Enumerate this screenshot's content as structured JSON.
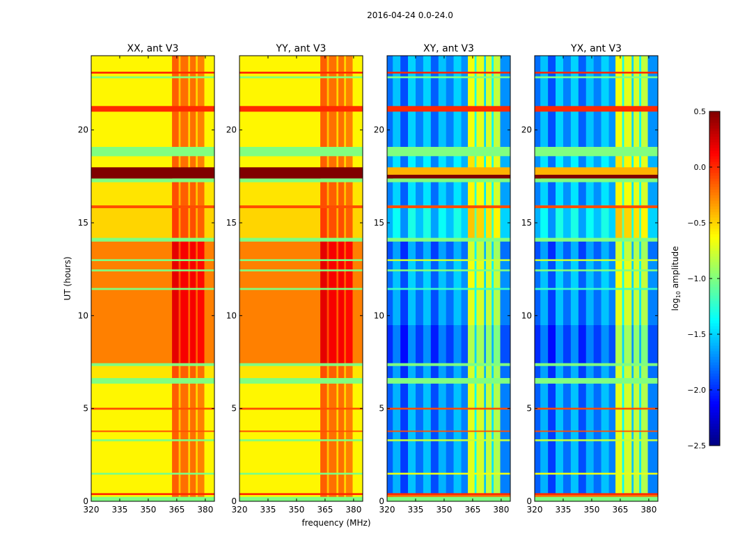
{
  "chart_data": {
    "type": "heatmap",
    "title": "2016-04-24 0.0-24.0",
    "xlabel": "frequency (MHz)",
    "ylabel": "UT (hours)",
    "xlim": [
      320,
      384.8
    ],
    "ylim": [
      0,
      24
    ],
    "xticks": [
      "320",
      "335",
      "350",
      "365",
      "380"
    ],
    "xtick_values": [
      320,
      335,
      350,
      365,
      380
    ],
    "yticks": [
      "0",
      "5",
      "10",
      "15",
      "20"
    ],
    "ytick_values": [
      0,
      5,
      10,
      15,
      20
    ],
    "colorbar": {
      "label": "log10 amplitude",
      "label_main": "log",
      "label_sub": "10",
      "label_rest": " amplitude",
      "range": [
        -2.5,
        0.5
      ],
      "ticks": [
        "0.5",
        "0.0",
        "−0.5",
        "−1.0",
        "−1.5",
        "−2.0",
        "−2.5"
      ],
      "tick_values": [
        0.5,
        0.0,
        -0.5,
        -1.0,
        -1.5,
        -2.0,
        -2.5
      ],
      "colormap": "jet"
    },
    "panels": [
      {
        "title": "XX, ant V3",
        "kind": "auto"
      },
      {
        "title": "YY, ant V3",
        "kind": "auto"
      },
      {
        "title": "XY, ant V3",
        "kind": "cross"
      },
      {
        "title": "YX, ant V3",
        "kind": "cross"
      }
    ],
    "column_profiles": {
      "auto": {
        "edges": [
          320,
          362.5,
          366,
          367,
          371,
          372,
          375,
          376,
          379.5,
          384.8
        ],
        "offsets": [
          0,
          0.45,
          0.15,
          0.4,
          0.1,
          0.4,
          0.1,
          0.35,
          0
        ]
      },
      "cross": {
        "edges": [
          320,
          323,
          327,
          331,
          335,
          339,
          343,
          347,
          351,
          355,
          359,
          362.5,
          366,
          367,
          371,
          372,
          375,
          376,
          379.5,
          384.8
        ],
        "offsets": [
          0,
          0.25,
          -0.1,
          0.3,
          0.05,
          0.3,
          -0.05,
          0.25,
          0.05,
          0.3,
          0.1,
          1.15,
          0.5,
          1.1,
          0.3,
          1.05,
          0.4,
          1.0,
          0.1
        ]
      }
    },
    "time_bands": {
      "auto": [
        [
          0,
          0.25,
          -1.0,
          true
        ],
        [
          0.25,
          0.35,
          -0.6,
          false
        ],
        [
          0.35,
          0.45,
          0.0,
          true
        ],
        [
          0.45,
          1.45,
          -0.6,
          false
        ],
        [
          1.45,
          1.55,
          -1.0,
          true
        ],
        [
          1.55,
          3.25,
          -0.6,
          false
        ],
        [
          3.25,
          3.35,
          -1.0,
          true
        ],
        [
          3.35,
          3.75,
          -0.6,
          false
        ],
        [
          3.75,
          3.82,
          -0.1,
          true
        ],
        [
          3.82,
          4.95,
          -0.6,
          false
        ],
        [
          4.95,
          5.05,
          -0.1,
          true
        ],
        [
          5.05,
          6.35,
          -0.6,
          false
        ],
        [
          6.35,
          6.65,
          -1.0,
          true
        ],
        [
          6.65,
          7.3,
          -0.55,
          false
        ],
        [
          7.3,
          7.45,
          -1.0,
          true
        ],
        [
          7.45,
          11.4,
          -0.25,
          false
        ],
        [
          11.4,
          11.5,
          -1.0,
          true
        ],
        [
          11.5,
          12.4,
          -0.25,
          false
        ],
        [
          12.4,
          12.5,
          -1.0,
          true
        ],
        [
          12.5,
          12.95,
          -0.25,
          false
        ],
        [
          12.95,
          13.05,
          -1.0,
          true
        ],
        [
          13.05,
          14.0,
          -0.25,
          false
        ],
        [
          14.0,
          14.2,
          -1.0,
          true
        ],
        [
          14.2,
          15.8,
          -0.5,
          false
        ],
        [
          15.8,
          15.95,
          -0.1,
          true
        ],
        [
          15.95,
          17.2,
          -0.55,
          false
        ],
        [
          17.2,
          17.4,
          -1.0,
          true
        ],
        [
          17.4,
          18.0,
          0.5,
          true
        ],
        [
          18.0,
          18.6,
          -0.6,
          false
        ],
        [
          18.6,
          19.1,
          -1.0,
          true
        ],
        [
          19.1,
          21.0,
          -0.6,
          false
        ],
        [
          21.0,
          21.3,
          0.0,
          true
        ],
        [
          21.3,
          22.8,
          -0.6,
          false
        ],
        [
          22.8,
          22.9,
          -1.0,
          true
        ],
        [
          22.9,
          23.05,
          -0.6,
          false
        ],
        [
          23.05,
          23.15,
          0.0,
          true
        ],
        [
          23.15,
          24,
          -0.6,
          false
        ]
      ],
      "cross": [
        [
          0,
          0.25,
          -1.0,
          true
        ],
        [
          0.25,
          0.35,
          -0.2,
          true
        ],
        [
          0.35,
          0.45,
          0.0,
          true
        ],
        [
          0.45,
          1.45,
          -1.85,
          false
        ],
        [
          1.45,
          1.55,
          -0.7,
          true
        ],
        [
          1.55,
          3.25,
          -1.85,
          false
        ],
        [
          3.25,
          3.35,
          -0.8,
          true
        ],
        [
          3.35,
          3.75,
          -1.85,
          false
        ],
        [
          3.75,
          3.82,
          -0.1,
          true
        ],
        [
          3.82,
          4.95,
          -1.85,
          false
        ],
        [
          4.95,
          5.05,
          -0.1,
          true
        ],
        [
          5.05,
          6.35,
          -1.85,
          false
        ],
        [
          6.35,
          6.65,
          -1.0,
          true
        ],
        [
          6.65,
          7.3,
          -1.9,
          false
        ],
        [
          7.3,
          7.45,
          -1.0,
          true
        ],
        [
          7.45,
          9.5,
          -2.0,
          false
        ],
        [
          9.5,
          11.4,
          -1.85,
          false
        ],
        [
          11.4,
          11.5,
          -1.2,
          true
        ],
        [
          11.5,
          12.4,
          -1.8,
          false
        ],
        [
          12.4,
          12.5,
          -1.0,
          true
        ],
        [
          12.5,
          12.95,
          -1.8,
          false
        ],
        [
          12.95,
          13.05,
          -0.8,
          true
        ],
        [
          13.05,
          14.0,
          -1.9,
          false
        ],
        [
          14.0,
          14.2,
          -1.0,
          true
        ],
        [
          14.2,
          15.8,
          -1.6,
          false
        ],
        [
          15.8,
          15.95,
          -0.1,
          true
        ],
        [
          15.95,
          17.2,
          -1.75,
          false
        ],
        [
          17.2,
          17.4,
          -1.0,
          true
        ],
        [
          17.4,
          17.6,
          0.5,
          true
        ],
        [
          17.6,
          18.0,
          -0.4,
          true
        ],
        [
          18.0,
          18.6,
          -1.7,
          false
        ],
        [
          18.6,
          19.1,
          -1.0,
          true
        ],
        [
          19.1,
          21.0,
          -1.8,
          false
        ],
        [
          21.0,
          21.3,
          0.0,
          true
        ],
        [
          21.3,
          22.8,
          -1.8,
          false
        ],
        [
          22.8,
          22.9,
          -1.0,
          true
        ],
        [
          22.9,
          23.05,
          -1.8,
          false
        ],
        [
          23.05,
          23.15,
          0.0,
          true
        ],
        [
          23.15,
          24,
          -1.8,
          false
        ]
      ]
    }
  }
}
